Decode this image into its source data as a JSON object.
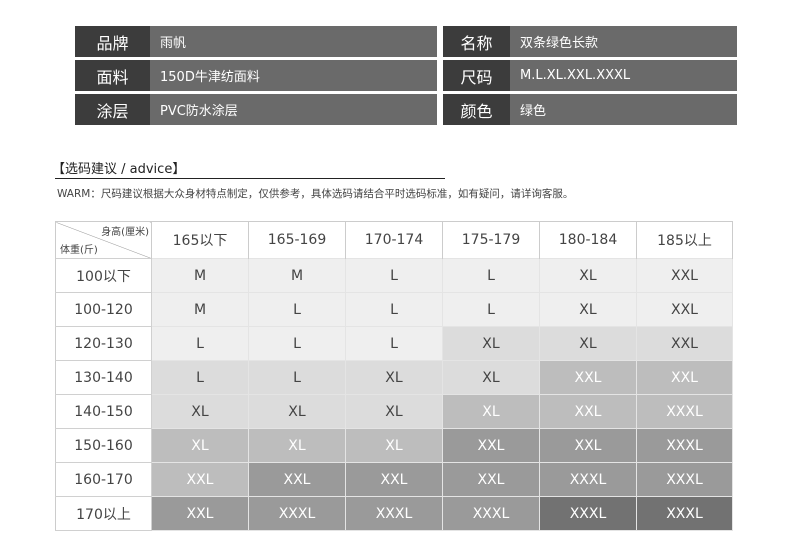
{
  "info": {
    "left": [
      {
        "label": "品牌",
        "value": "雨帆"
      },
      {
        "label": "面料",
        "value": "150D牛津纺面料"
      },
      {
        "label": "涂层",
        "value": "PVC防水涂层"
      }
    ],
    "right": [
      {
        "label": "名称",
        "value": "双条绿色长款"
      },
      {
        "label": "尺码",
        "value": "M.L.XL.XXL.XXXL"
      },
      {
        "label": "颜色",
        "value": "绿色"
      }
    ]
  },
  "advice": {
    "title": "【选码建议 / advice】",
    "warm": "WARM：尺码建议根据大众身材特点制定，仅供参考，具体选码请结合平时选码标准，如有疑问，请详询客服。"
  },
  "table": {
    "corner_height": "身高(厘米)",
    "corner_weight": "体重(斤)",
    "heights": [
      "165以下",
      "165-169",
      "170-174",
      "175-179",
      "180-184",
      "185以上"
    ],
    "rows": [
      {
        "weight": "100以下",
        "sizes": [
          "M",
          "M",
          "L",
          "L",
          "XL",
          "XXL"
        ],
        "shade": [
          0,
          0,
          0,
          0,
          0,
          0
        ]
      },
      {
        "weight": "100-120",
        "sizes": [
          "M",
          "L",
          "L",
          "L",
          "XL",
          "XXL"
        ],
        "shade": [
          0,
          0,
          0,
          0,
          0,
          0
        ]
      },
      {
        "weight": "120-130",
        "sizes": [
          "L",
          "L",
          "L",
          "XL",
          "XL",
          "XXL"
        ],
        "shade": [
          0,
          0,
          0,
          1,
          1,
          1
        ]
      },
      {
        "weight": "130-140",
        "sizes": [
          "L",
          "L",
          "XL",
          "XL",
          "XXL",
          "XXL"
        ],
        "shade": [
          1,
          1,
          1,
          1,
          2,
          2
        ]
      },
      {
        "weight": "140-150",
        "sizes": [
          "XL",
          "XL",
          "XL",
          "XL",
          "XXL",
          "XXXL"
        ],
        "shade": [
          1,
          1,
          1,
          2,
          2,
          2
        ]
      },
      {
        "weight": "150-160",
        "sizes": [
          "XL",
          "XL",
          "XL",
          "XXL",
          "XXL",
          "XXXL"
        ],
        "shade": [
          2,
          2,
          2,
          3,
          3,
          3
        ]
      },
      {
        "weight": "160-170",
        "sizes": [
          "XXL",
          "XXL",
          "XXL",
          "XXL",
          "XXXL",
          "XXXL"
        ],
        "shade": [
          2,
          3,
          3,
          3,
          3,
          3
        ]
      },
      {
        "weight": "170以上",
        "sizes": [
          "XXL",
          "XXXL",
          "XXXL",
          "XXXL",
          "XXXL",
          "XXXL"
        ],
        "shade": [
          3,
          3,
          3,
          3,
          4,
          4
        ]
      }
    ]
  }
}
